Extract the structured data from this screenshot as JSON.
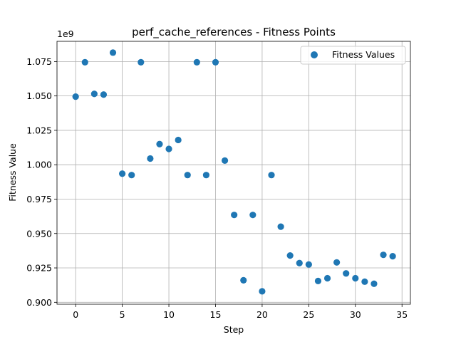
{
  "chart_data": {
    "type": "scatter",
    "title": "perf_cache_references - Fitness Points",
    "xlabel": "Step",
    "ylabel": "Fitness Value",
    "y_offset_label": "1e9",
    "xlim": [
      -2,
      35.9
    ],
    "ylim": [
      0.8986,
      1.0897
    ],
    "x_ticks": [
      0,
      5,
      10,
      15,
      20,
      25,
      30,
      35
    ],
    "x_tick_labels": [
      "0",
      "5",
      "10",
      "15",
      "20",
      "25",
      "30",
      "35"
    ],
    "y_ticks": [
      0.9,
      0.925,
      0.95,
      0.975,
      1.0,
      1.025,
      1.05,
      1.075
    ],
    "y_tick_labels": [
      "0.900",
      "0.925",
      "0.950",
      "0.975",
      "1.000",
      "1.025",
      "1.050",
      "1.075"
    ],
    "grid": true,
    "legend_position": "top-right",
    "point_color": "#1f77b4",
    "series": [
      {
        "name": "Fitness Values",
        "x": [
          0,
          1,
          2,
          3,
          4,
          5,
          6,
          7,
          8,
          9,
          10,
          11,
          12,
          13,
          14,
          15,
          16,
          17,
          18,
          19,
          20,
          21,
          22,
          23,
          24,
          25,
          26,
          27,
          28,
          29,
          30,
          31,
          32,
          33,
          34
        ],
        "y": [
          1.0495,
          1.0745,
          1.0515,
          1.051,
          1.0815,
          0.9935,
          0.9925,
          1.0745,
          1.0045,
          1.015,
          1.0115,
          1.018,
          0.9925,
          1.0745,
          0.9925,
          1.0745,
          1.003,
          0.9635,
          0.916,
          0.9635,
          0.908,
          0.9925,
          0.955,
          0.934,
          0.9285,
          0.9275,
          0.9155,
          0.9175,
          0.929,
          0.921,
          0.9175,
          0.915,
          0.9135,
          0.9345,
          0.9335
        ]
      }
    ]
  }
}
